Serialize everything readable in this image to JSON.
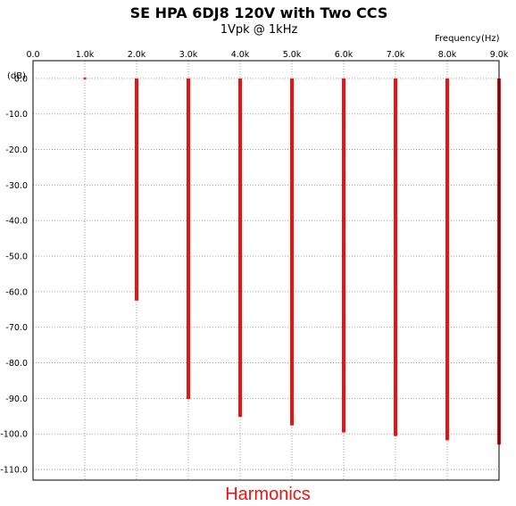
{
  "chart_data": {
    "type": "bar",
    "title": "SE HPA 6DJ8 120V with Two CCS",
    "subtitle": "1Vpk @ 1kHz",
    "xlabel": "Frequency",
    "xunit": "(Hz)",
    "ylabel": "(dB)",
    "caption": "Harmonics",
    "xlim": [
      0,
      9000
    ],
    "ylim": [
      -113,
      5
    ],
    "x_ticks": [
      0,
      1000,
      2000,
      3000,
      4000,
      5000,
      6000,
      7000,
      8000,
      9000
    ],
    "x_tick_labels": [
      "0.0",
      "1.0k",
      "2.0k",
      "3.0k",
      "4.0k",
      "5.0k",
      "6.0k",
      "7.0k",
      "8.0k",
      "9.0k"
    ],
    "y_ticks": [
      0,
      -10,
      -20,
      -30,
      -40,
      -50,
      -60,
      -70,
      -80,
      -90,
      -100,
      -110
    ],
    "y_tick_labels": [
      "0.0",
      "-10.0",
      "-20.0",
      "-30.0",
      "-40.0",
      "-50.0",
      "-60.0",
      "-70.0",
      "-80.0",
      "-90.0",
      "-100.0",
      "-110.0"
    ],
    "grid": true,
    "series": [
      {
        "x": [
          1000,
          2000,
          3000,
          4000,
          5000,
          6000,
          7000,
          8000,
          9000
        ],
        "values": [
          0,
          -62.5,
          -90.2,
          -95.2,
          -97.6,
          -99.6,
          -100.6,
          -101.8,
          -103
        ]
      }
    ],
    "colors": {
      "bar": "#ee1111",
      "caption": "#ee1111",
      "grid": "#888888"
    }
  }
}
